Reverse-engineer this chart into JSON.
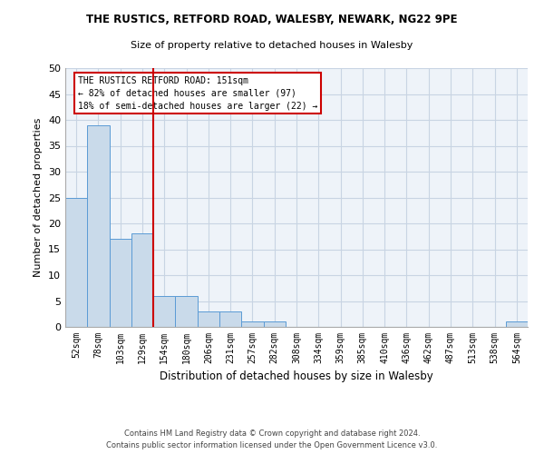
{
  "title1": "THE RUSTICS, RETFORD ROAD, WALESBY, NEWARK, NG22 9PE",
  "title2": "Size of property relative to detached houses in Walesby",
  "xlabel": "Distribution of detached houses by size in Walesby",
  "ylabel": "Number of detached properties",
  "footer1": "Contains HM Land Registry data © Crown copyright and database right 2024.",
  "footer2": "Contains public sector information licensed under the Open Government Licence v3.0.",
  "categories": [
    "52sqm",
    "78sqm",
    "103sqm",
    "129sqm",
    "154sqm",
    "180sqm",
    "206sqm",
    "231sqm",
    "257sqm",
    "282sqm",
    "308sqm",
    "334sqm",
    "359sqm",
    "385sqm",
    "410sqm",
    "436sqm",
    "462sqm",
    "487sqm",
    "513sqm",
    "538sqm",
    "564sqm"
  ],
  "values": [
    25,
    39,
    17,
    18,
    6,
    6,
    3,
    3,
    1,
    1,
    0,
    0,
    0,
    0,
    0,
    0,
    0,
    0,
    0,
    0,
    1
  ],
  "bar_color": "#c9daea",
  "bar_edge_color": "#5b9bd5",
  "grid_color": "#c8d4e3",
  "background_color": "#eef3f9",
  "annotation_box_color": "#ffffff",
  "annotation_border_color": "#cc0000",
  "red_line_x": 3.5,
  "annotation_text_line1": "THE RUSTICS RETFORD ROAD: 151sqm",
  "annotation_text_line2": "← 82% of detached houses are smaller (97)",
  "annotation_text_line3": "18% of semi-detached houses are larger (22) →",
  "ylim": [
    0,
    50
  ],
  "yticks": [
    0,
    5,
    10,
    15,
    20,
    25,
    30,
    35,
    40,
    45,
    50
  ]
}
